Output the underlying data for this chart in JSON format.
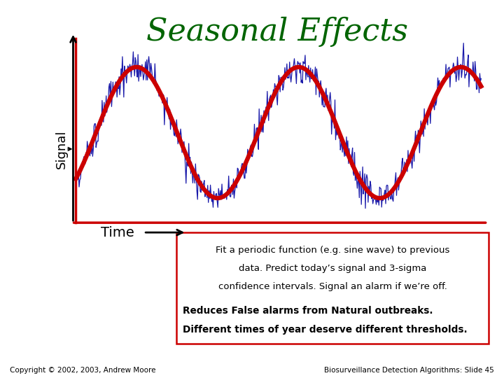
{
  "title": "Seasonal Effects",
  "title_color": "#006400",
  "title_fontsize": 32,
  "ylabel": "Signal",
  "xlabel": "Time",
  "bg_color": "#ffffff",
  "sine_color": "#cc0000",
  "noisy_color": "#1a1aaa",
  "box_text_line1": "Fit a periodic function (e.g. sine wave) to previous",
  "box_text_line2": "data. Predict today’s signal and 3-sigma",
  "box_text_line3": "confidence intervals. Signal an alarm if we’re off.",
  "box_text_line4": "Reduces False alarms from Natural outbreaks.",
  "box_text_line5": "Different times of year deserve different thresholds.",
  "footer_left": "Copyright © 2002, 2003, Andrew Moore",
  "footer_right": "Biosurveillance Detection Algorithms: Slide 45",
  "box_edge_color": "#cc0000",
  "yaxis_color": "#000000",
  "xaxis_color": "#cc0000"
}
